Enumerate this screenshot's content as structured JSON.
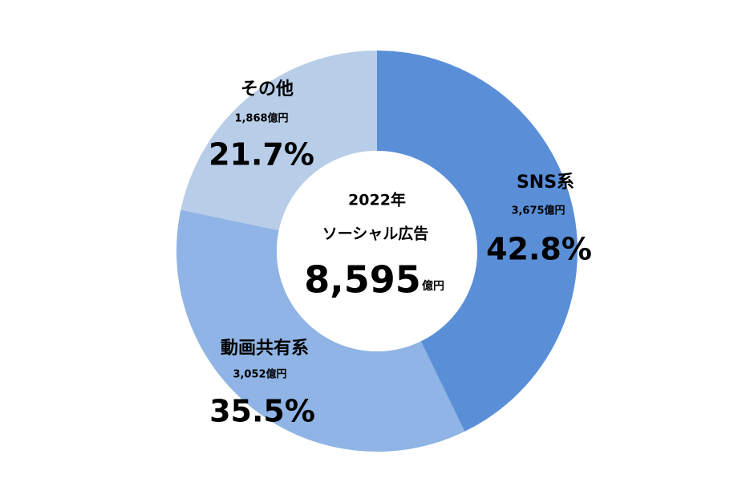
{
  "chart_data": {
    "type": "donut",
    "categories": [
      "SNS系",
      "動画共有系",
      "その他"
    ],
    "values": [
      42.8,
      35.5,
      21.7
    ],
    "value_labels": [
      "42.8%",
      "35.5%",
      "21.7%"
    ],
    "amounts": [
      "3,675億円",
      "3,052億円",
      "1,868億円"
    ],
    "colors": [
      "#5a8fd8",
      "#8fb4e5",
      "#b8cde8"
    ],
    "center": {
      "year": "2022年",
      "label": "ソーシャル広告",
      "total": "8,595",
      "unit": "億円"
    }
  }
}
